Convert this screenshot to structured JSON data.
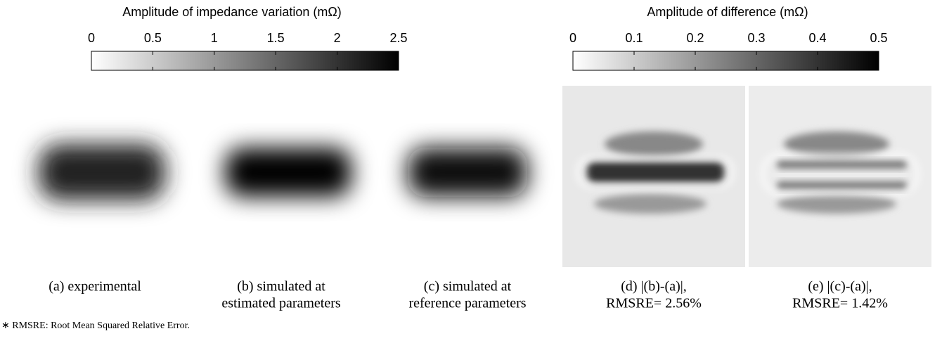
{
  "colorbars": [
    {
      "label": "Amplitude of impedance variation (mΩ)",
      "lim": [
        0,
        2.5
      ],
      "ticks": [
        0,
        0.5,
        1,
        1.5,
        2,
        2.5
      ]
    },
    {
      "label": "Amplitude of difference (mΩ)",
      "lim": [
        0,
        0.5
      ],
      "ticks": [
        0,
        0.1,
        0.2,
        0.3,
        0.4,
        0.5
      ]
    }
  ],
  "panels": [
    {
      "caption": [
        "(a) experimental"
      ]
    },
    {
      "caption": [
        "(b) simulated at",
        "estimated parameters"
      ]
    },
    {
      "caption": [
        "(c) simulated at",
        "reference parameters"
      ]
    },
    {
      "caption": [
        "(d) |(b)-(a)|,",
        "RMSRE= 2.56%"
      ]
    },
    {
      "caption": [
        "(e) |(c)-(a)|,",
        "RMSRE= 1.42%"
      ]
    }
  ],
  "footnote": "∗ RMSRE: Root Mean Squared Relative Error."
}
